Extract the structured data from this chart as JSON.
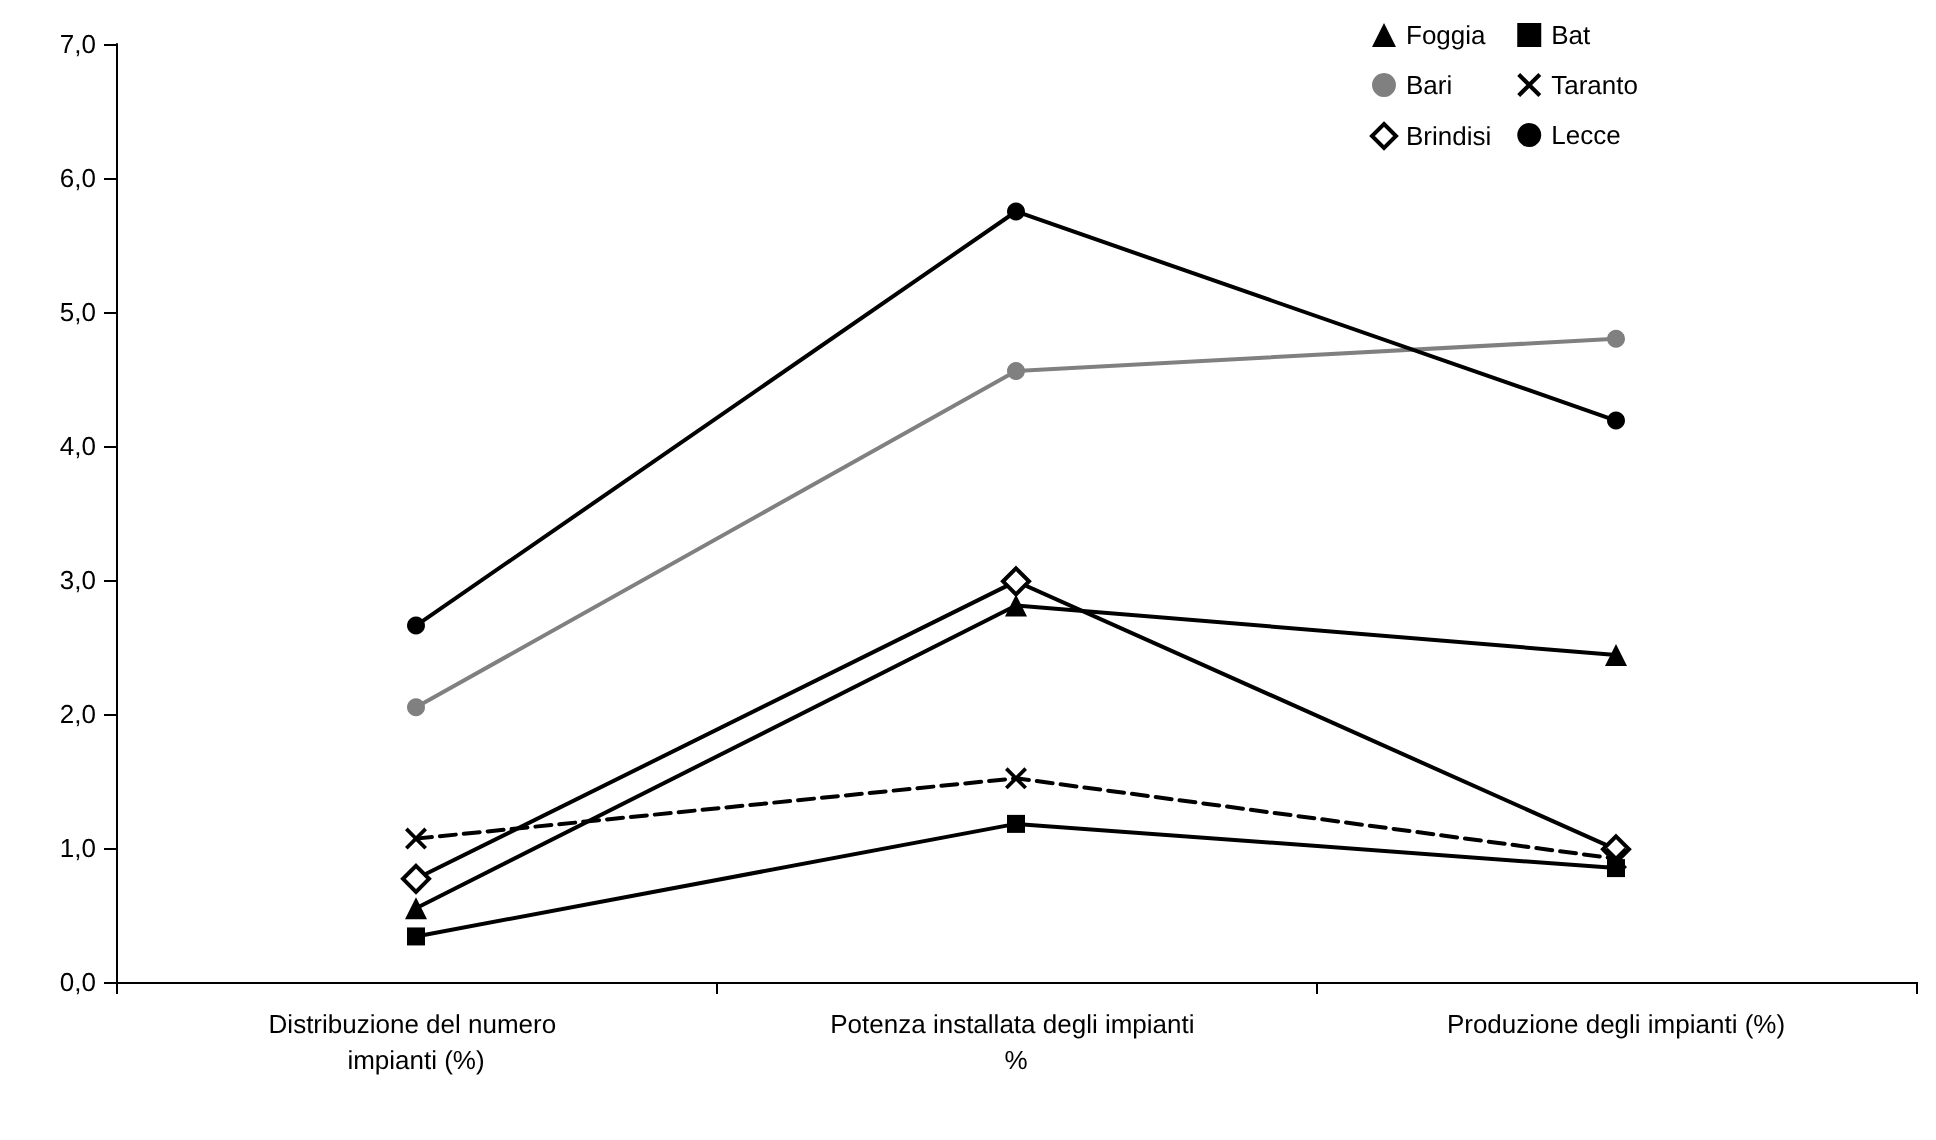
{
  "chart_data": {
    "type": "line",
    "categories": [
      "Distribuzione del numero impianti (%)",
      "Potenza installata degli impianti %",
      "Produzione degli impianti (%)"
    ],
    "series": [
      {
        "name": "Foggia",
        "color": "#000000",
        "marker": "triangle",
        "line_style": "solid",
        "values": [
          0.55,
          2.81,
          2.44
        ]
      },
      {
        "name": "Bari",
        "color": "#808080",
        "marker": "circle",
        "line_style": "solid",
        "values": [
          2.05,
          4.56,
          4.8
        ]
      },
      {
        "name": "Brindisi",
        "color": "#000000",
        "marker": "diamond",
        "line_style": "solid",
        "values": [
          0.77,
          2.99,
          0.99
        ]
      },
      {
        "name": "Bat",
        "color": "#000000",
        "marker": "square",
        "line_style": "solid",
        "values": [
          0.34,
          1.18,
          0.85
        ]
      },
      {
        "name": "Taranto",
        "color": "#000000",
        "marker": "cross",
        "line_style": "dashed",
        "values": [
          1.07,
          1.52,
          0.92
        ]
      },
      {
        "name": "Lecce",
        "color": "#000000",
        "marker": "circle",
        "line_style": "solid",
        "values": [
          2.66,
          5.75,
          4.19
        ]
      }
    ],
    "ylim": [
      0,
      7
    ],
    "yticks": [
      {
        "value": 0,
        "label": "0,0"
      },
      {
        "value": 1,
        "label": "1,0"
      },
      {
        "value": 2,
        "label": "2,0"
      },
      {
        "value": 3,
        "label": "3,0"
      },
      {
        "value": 4,
        "label": "4,0"
      },
      {
        "value": 5,
        "label": "5,0"
      },
      {
        "value": 6,
        "label": "6,0"
      },
      {
        "value": 7,
        "label": "7,0"
      }
    ],
    "grid": false,
    "legend": "top right"
  }
}
